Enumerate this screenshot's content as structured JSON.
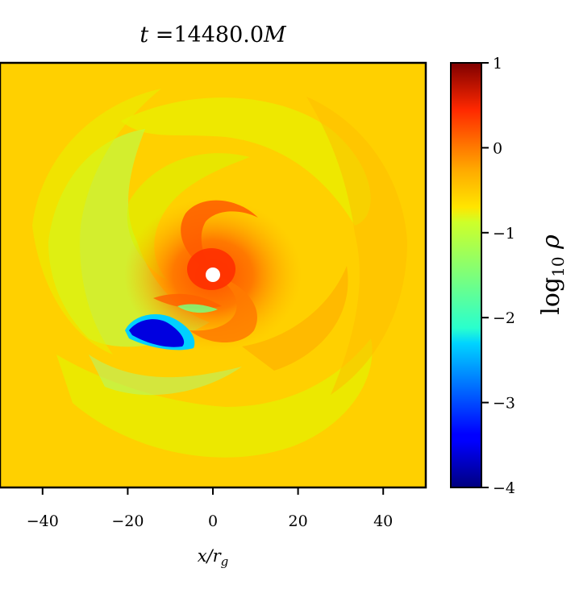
{
  "chart_data": {
    "type": "heatmap",
    "title": "t =14480.0M",
    "xlabel": "x/r_g",
    "ylabel": "",
    "xlim": [
      -50,
      50
    ],
    "ylim": [
      -50,
      50
    ],
    "x_ticks": [
      -40,
      -20,
      0,
      20,
      40
    ],
    "x_tick_labels": [
      "−40",
      "−20",
      "0",
      "20",
      "40"
    ],
    "y_ticks": [],
    "colorbar": {
      "label": "log10 ρ",
      "range": [
        -4,
        1
      ],
      "ticks": [
        1,
        0,
        -1,
        -2,
        -3,
        -4
      ],
      "tick_labels": [
        "1",
        "0",
        "−1",
        "−2",
        "−3",
        "−4"
      ],
      "colormap": "jet"
    },
    "field_description": {
      "background_log10_rho": -0.5,
      "peak_log10_rho": 0.3,
      "min_log10_rho": -3.3,
      "structure": "spiral accretion flow around central black hole at origin"
    }
  },
  "colors": {
    "jet_dark_blue": "#00007f",
    "jet_blue": "#0000ff",
    "jet_cyan": "#00ffff",
    "jet_yellow": "#ffff00",
    "jet_red": "#ff0000",
    "jet_dark_red": "#7f0000"
  }
}
